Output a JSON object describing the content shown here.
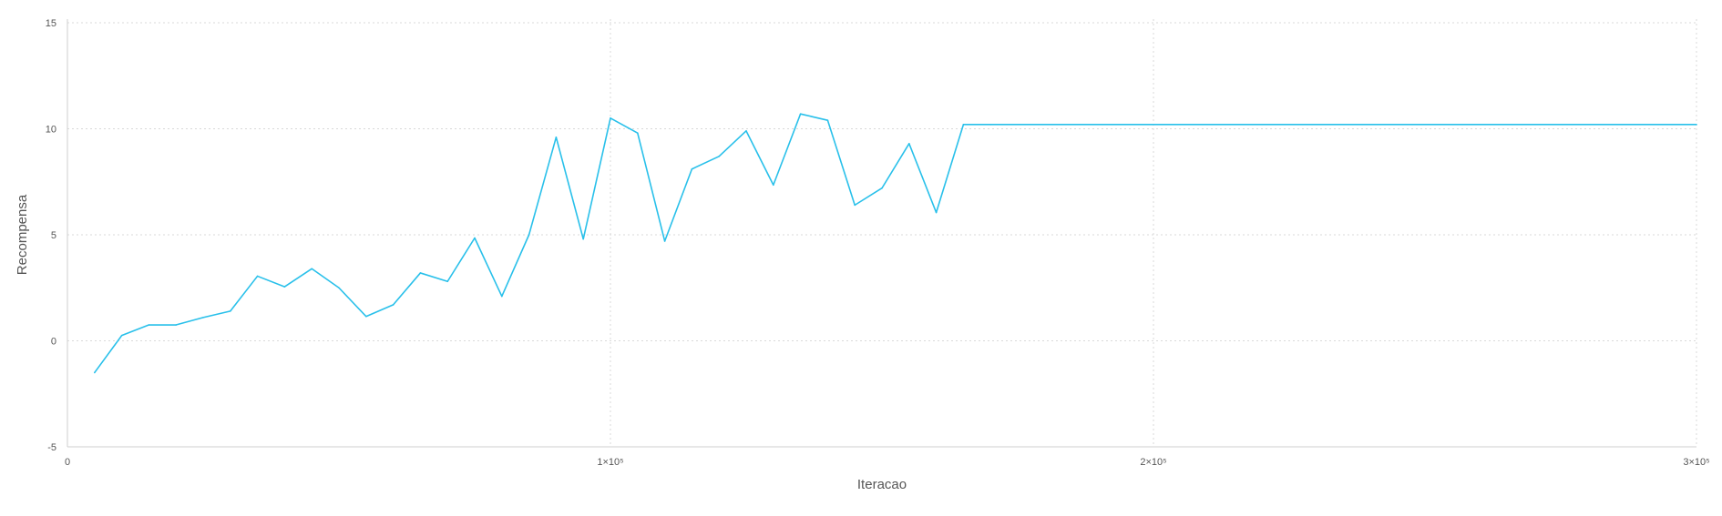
{
  "chart_data": {
    "type": "line",
    "title": "",
    "xlabel": "Iteracao",
    "ylabel": "Recompensa",
    "xlim": [
      0,
      300000
    ],
    "ylim": [
      -5,
      15
    ],
    "grid": true,
    "legend": "none",
    "colors": {
      "series": "#29c0ea"
    },
    "x_ticks": [
      {
        "value": 0,
        "label": "0"
      },
      {
        "value": 100000,
        "label": "1×10⁵"
      },
      {
        "value": 200000,
        "label": "2×10⁵"
      },
      {
        "value": 300000,
        "label": "3×10⁵"
      }
    ],
    "y_ticks": [
      {
        "value": -5,
        "label": "-5"
      },
      {
        "value": 0,
        "label": "0"
      },
      {
        "value": 5,
        "label": "5"
      },
      {
        "value": 10,
        "label": "10"
      },
      {
        "value": 15,
        "label": "15"
      }
    ],
    "series": [
      {
        "x": [
          5000,
          10000,
          15000,
          20000,
          25000,
          30000,
          35000,
          40000,
          45000,
          50000,
          55000,
          60000,
          65000,
          70000,
          75000,
          80000,
          85000,
          90000,
          95000,
          100000,
          105000,
          110000,
          115000,
          120000,
          125000,
          130000,
          135000,
          140000,
          145000,
          150000,
          155000,
          160000,
          165000,
          170000,
          300000
        ],
        "values": [
          -1.5,
          0.25,
          0.75,
          0.75,
          1.1,
          1.4,
          3.05,
          2.55,
          3.4,
          2.5,
          1.15,
          1.7,
          3.2,
          2.8,
          4.85,
          2.1,
          5.0,
          9.6,
          4.8,
          10.5,
          9.8,
          4.7,
          8.1,
          8.7,
          9.9,
          7.35,
          10.7,
          10.4,
          6.4,
          7.2,
          9.3,
          6.05,
          10.2,
          10.2,
          10.2
        ]
      }
    ]
  }
}
